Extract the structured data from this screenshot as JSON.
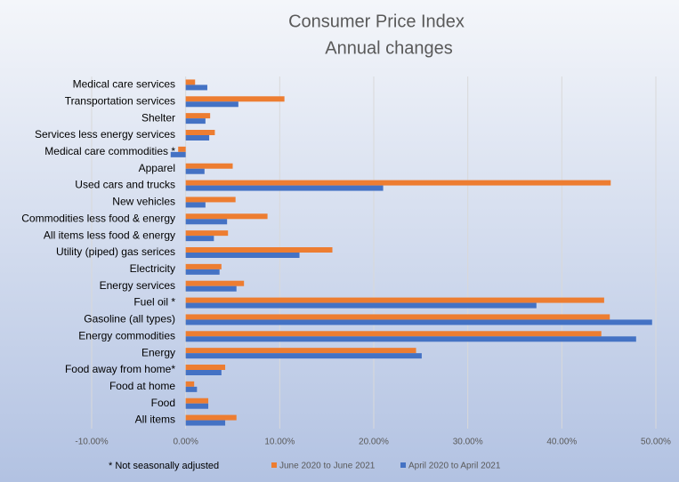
{
  "chart_data": {
    "type": "hbar",
    "title": "Consumer Price Index",
    "subtitle": "Annual changes",
    "note": "* Not seasonally adjusted",
    "categories": [
      "Medical care services",
      "Transportation services",
      "Shelter",
      "Services less energy services",
      "Medical care commodities *",
      "Apparel",
      "Used cars and trucks",
      "New vehicles",
      "Commodities less food & energy",
      "All items less food & energy",
      "Utility (piped) gas serices",
      "Electricity",
      "Energy services",
      "Fuel oil *",
      "Gasoline (all types)",
      "Energy commodities",
      "Energy",
      "Food away from home*",
      "Food at home",
      "Food",
      "All items"
    ],
    "series": [
      {
        "name": "June 2020 to June 2021",
        "color": "#ed7d31",
        "values": [
          1.0,
          10.5,
          2.6,
          3.1,
          -0.8,
          5.0,
          45.2,
          5.3,
          8.7,
          4.5,
          15.6,
          3.8,
          6.2,
          44.5,
          45.1,
          44.2,
          24.5,
          4.2,
          0.9,
          2.4,
          5.4
        ]
      },
      {
        "name": "April 2020 to April 2021",
        "color": "#4472c4",
        "values": [
          2.3,
          5.6,
          2.1,
          2.5,
          -1.6,
          2.0,
          21.0,
          2.1,
          4.4,
          3.0,
          12.1,
          3.6,
          5.4,
          37.3,
          49.6,
          47.9,
          25.1,
          3.8,
          1.2,
          2.4,
          4.2
        ]
      }
    ],
    "xlim": [
      -10,
      50
    ],
    "xticks": [
      {
        "value": -10,
        "label": "-10.00%"
      },
      {
        "value": 0,
        "label": "0.00%"
      },
      {
        "value": 10,
        "label": "10.00%"
      },
      {
        "value": 20,
        "label": "20.00%"
      },
      {
        "value": 30,
        "label": "30.00%"
      },
      {
        "value": 40,
        "label": "40.00%"
      },
      {
        "value": 50,
        "label": "50.00%"
      }
    ],
    "grid": true
  }
}
